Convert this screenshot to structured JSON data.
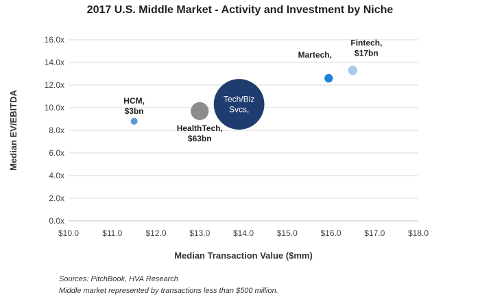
{
  "chart_data": {
    "type": "bubble",
    "title": "2017 U.S. Middle Market - Activity and Investment by Niche",
    "xlabel": "Median Transaction Value ($mm)",
    "ylabel": "Median EV/EBITDA",
    "xlim": [
      10,
      18
    ],
    "ylim": [
      0,
      16
    ],
    "x_ticks": [
      "$10.0",
      "$11.0",
      "$12.0",
      "$13.0",
      "$14.0",
      "$15.0",
      "$16.0",
      "$17.0",
      "$18.0"
    ],
    "y_ticks": [
      "0.0x",
      "2.0x",
      "4.0x",
      "6.0x",
      "8.0x",
      "10.0x",
      "12.0x",
      "14.0x",
      "16.0x"
    ],
    "grid": "horizontal",
    "points": [
      {
        "name": "HCM",
        "x": 11.5,
        "y": 8.8,
        "size_bn": 3,
        "color": "#5b9bd5",
        "label_lines": [
          "HCM,",
          "$3bn"
        ],
        "label_pos": "above",
        "label_inside": false
      },
      {
        "name": "HealthTech",
        "x": 13.0,
        "y": 9.7,
        "size_bn": 63,
        "color": "#8c8c8c",
        "label_lines": [
          "HealthTech,",
          "$63bn"
        ],
        "label_pos": "below",
        "label_inside": false
      },
      {
        "name": "Tech/Biz Svcs",
        "x": 13.9,
        "y": 10.3,
        "size_bn": 500,
        "color": "#1f3c6e",
        "label_lines": [
          "Tech/Biz",
          "Svcs,"
        ],
        "label_pos": "center",
        "label_inside": true
      },
      {
        "name": "Martech",
        "x": 15.95,
        "y": 12.6,
        "size_bn": 14,
        "color": "#1f82d9",
        "label_lines": [
          "Martech,"
        ],
        "label_pos": "above-left",
        "label_inside": false
      },
      {
        "name": "Fintech",
        "x": 16.5,
        "y": 13.3,
        "size_bn": 17,
        "color": "#a9c9ec",
        "label_lines": [
          "Fintech,",
          "$17bn"
        ],
        "label_pos": "above-right",
        "label_inside": false
      }
    ]
  },
  "notes": {
    "source": "Sources: PitchBook, HVA Research",
    "definition": "Middle market represented by transactions less than $500 million."
  }
}
